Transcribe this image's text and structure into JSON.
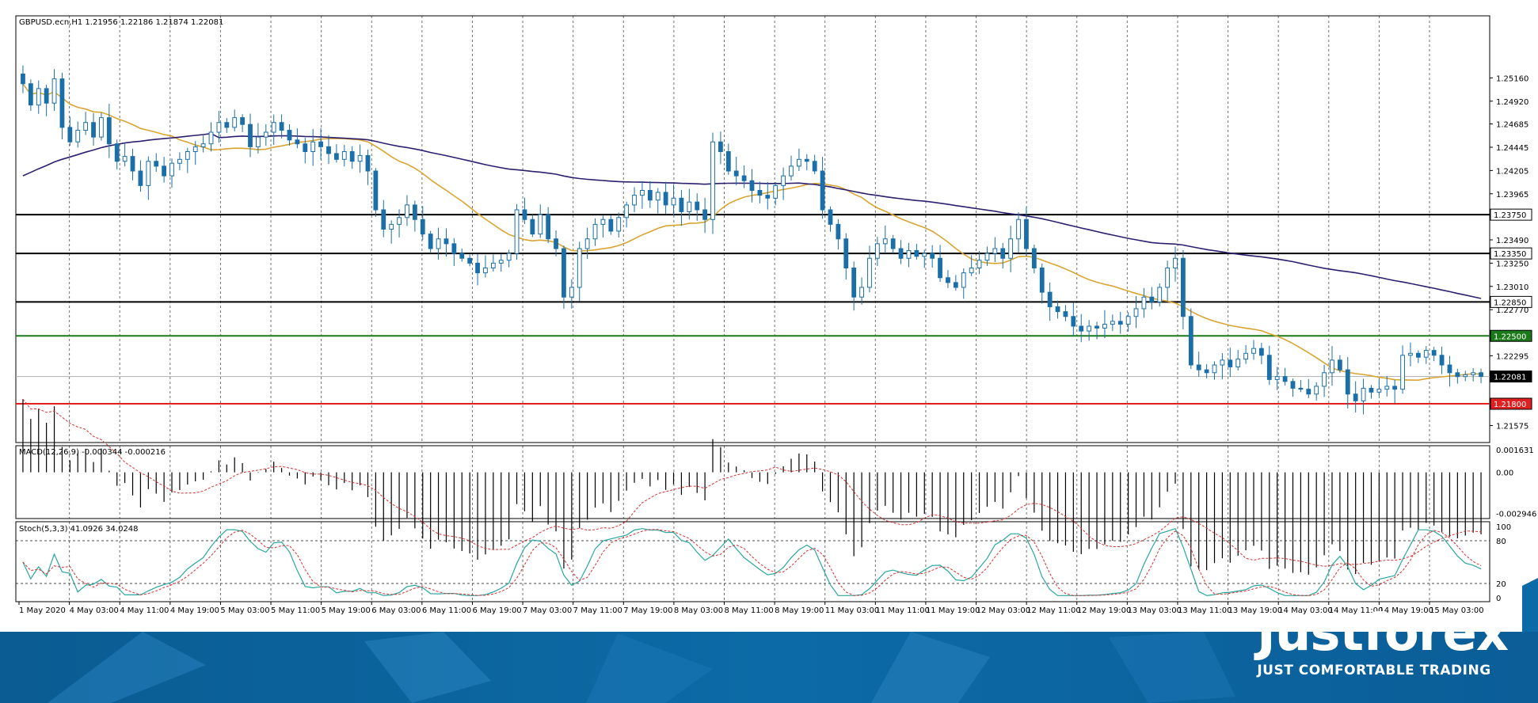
{
  "header": {
    "symbol_info": "GBPUSD.ecn,H1  1.21956 1.22186 1.21874 1.22081"
  },
  "chart_data": {
    "type": "candlestick",
    "price_axis": {
      "ticks": [
        "1.25160",
        "1.24920",
        "1.24685",
        "1.24445",
        "1.24205",
        "1.23965",
        "1.23490",
        "1.23250",
        "1.23010",
        "1.22770",
        "1.22295",
        "1.21575"
      ],
      "range": [
        1.214,
        1.258
      ]
    },
    "levels": [
      {
        "label": "1.23750",
        "value": 1.2375,
        "color": "#000000",
        "style": "box"
      },
      {
        "label": "1.23350",
        "value": 1.2335,
        "color": "#000000",
        "style": "box"
      },
      {
        "label": "1.22850",
        "value": 1.2285,
        "color": "#000000",
        "style": "box"
      },
      {
        "label": "1.22500",
        "value": 1.225,
        "color": "#1a7a1a",
        "style": "fill"
      },
      {
        "label": "1.22081",
        "value": 1.22081,
        "color": "#000000",
        "style": "current"
      },
      {
        "label": "1.21800",
        "value": 1.218,
        "color": "#e02020",
        "style": "fill"
      }
    ],
    "time_labels": [
      "1 May 2020",
      "4 May 03:00",
      "4 May 11:00",
      "4 May 19:00",
      "5 May 03:00",
      "5 May 11:00",
      "5 May 19:00",
      "6 May 03:00",
      "6 May 11:00",
      "6 May 19:00",
      "7 May 03:00",
      "7 May 11:00",
      "7 May 19:00",
      "8 May 03:00",
      "8 May 11:00",
      "8 May 19:00",
      "11 May 03:00",
      "11 May 11:00",
      "11 May 19:00",
      "12 May 03:00",
      "12 May 11:00",
      "12 May 19:00",
      "13 May 03:00",
      "13 May 11:00",
      "13 May 19:00",
      "14 May 03:00",
      "14 May 11:00",
      "14 May 19:00",
      "15 May 03:00"
    ],
    "closes": [
      1.251,
      1.2488,
      1.2505,
      1.249,
      1.2515,
      1.2465,
      1.245,
      1.2462,
      1.247,
      1.2455,
      1.2475,
      1.2448,
      1.243,
      1.2435,
      1.242,
      1.2405,
      1.243,
      1.2425,
      1.2415,
      1.2428,
      1.2432,
      1.244,
      1.2445,
      1.2448,
      1.246,
      1.247,
      1.2465,
      1.2475,
      1.2468,
      1.2445,
      1.2455,
      1.246,
      1.247,
      1.2462,
      1.2452,
      1.2448,
      1.244,
      1.245,
      1.2445,
      1.2438,
      1.2432,
      1.244,
      1.243,
      1.2436,
      1.242,
      1.238,
      1.236,
      1.2365,
      1.2372,
      1.2385,
      1.237,
      1.2355,
      1.234,
      1.235,
      1.2345,
      1.2335,
      1.233,
      1.2325,
      1.2315,
      1.232,
      1.2325,
      1.2328,
      1.2335,
      1.238,
      1.237,
      1.2355,
      1.2375,
      1.235,
      1.234,
      1.229,
      1.23,
      1.234,
      1.235,
      1.2365,
      1.237,
      1.2358,
      1.2372,
      1.2385,
      1.2395,
      1.24,
      1.239,
      1.2398,
      1.2385,
      1.2392,
      1.2378,
      1.2388,
      1.238,
      1.237,
      1.245,
      1.244,
      1.242,
      1.2415,
      1.241,
      1.24,
      1.2395,
      1.2392,
      1.2405,
      1.2415,
      1.2425,
      1.2432,
      1.243,
      1.242,
      1.238,
      1.2365,
      1.235,
      1.232,
      1.229,
      1.23,
      1.233,
      1.2345,
      1.235,
      1.234,
      1.233,
      1.2338,
      1.2332,
      1.2335,
      1.233,
      1.231,
      1.2305,
      1.23,
      1.2315,
      1.232,
      1.2328,
      1.2335,
      1.234,
      1.233,
      1.235,
      1.237,
      1.234,
      1.232,
      1.2295,
      1.228,
      1.2275,
      1.227,
      1.226,
      1.2255,
      1.226,
      1.2258,
      1.2262,
      1.2265,
      1.2262,
      1.227,
      1.2278,
      1.229,
      1.2285,
      1.23,
      1.232,
      1.233,
      1.227,
      1.222,
      1.2215,
      1.2212,
      1.222,
      1.2225,
      1.2218,
      1.2226,
      1.2232,
      1.2237,
      1.223,
      1.2205,
      1.2208,
      1.2203,
      1.2196,
      1.2195,
      1.219,
      1.2198,
      1.2212,
      1.2225,
      1.2215,
      1.219,
      1.2183,
      1.2196,
      1.2192,
      1.2195,
      1.2198,
      1.2195,
      1.223,
      1.2232,
      1.2228,
      1.2235,
      1.223,
      1.222,
      1.2212,
      1.2208,
      1.221,
      1.2212,
      1.22081
    ],
    "ma_fast_label": "",
    "ma_slow_label": "",
    "macd": {
      "label": "MACD(12,26,9) -0.000344 -0.000216",
      "ticks": [
        "0.001631",
        "0.00",
        "-0.002946"
      ],
      "range": [
        -0.0033,
        0.0019
      ]
    },
    "stoch": {
      "label": "Stoch(5,3,3) 41.0926 34.0248",
      "ticks": [
        "100",
        "80",
        "20",
        "0"
      ],
      "levels": [
        80,
        20
      ]
    }
  },
  "footer": {
    "brand": "Justforex",
    "tagline": "JUST COMFORTABLE TRADING"
  }
}
